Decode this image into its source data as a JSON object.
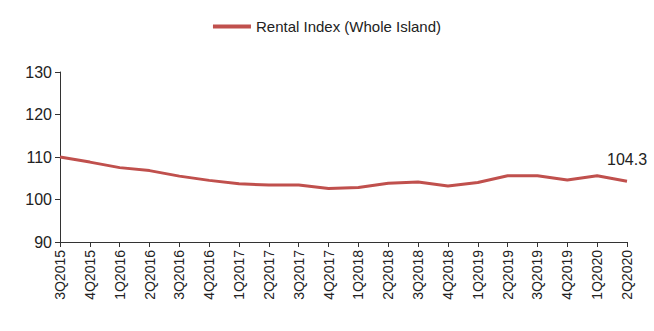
{
  "chart_data": {
    "type": "line",
    "categories": [
      "3Q2015",
      "4Q2015",
      "1Q2016",
      "2Q2016",
      "3Q2016",
      "4Q2016",
      "1Q2017",
      "2Q2017",
      "3Q2017",
      "4Q2017",
      "1Q2018",
      "2Q2018",
      "3Q2018",
      "4Q2018",
      "1Q2019",
      "2Q2019",
      "3Q2019",
      "4Q2019",
      "1Q2020",
      "2Q2020"
    ],
    "series": [
      {
        "name": "Rental Index (Whole Island)",
        "color": "#c0504d",
        "values": [
          110.0,
          108.8,
          107.5,
          106.8,
          105.5,
          104.5,
          103.7,
          103.4,
          103.4,
          102.6,
          102.8,
          103.8,
          104.1,
          103.2,
          104.0,
          105.6,
          105.6,
          104.6,
          105.6,
          104.3
        ]
      }
    ],
    "annotations": [
      {
        "x": "2Q2020",
        "y": 104.3,
        "text": "104.3"
      }
    ],
    "ylim": [
      90,
      130
    ],
    "yticks": [
      90,
      100,
      110,
      120,
      130
    ],
    "grid": false,
    "legend": "top"
  }
}
